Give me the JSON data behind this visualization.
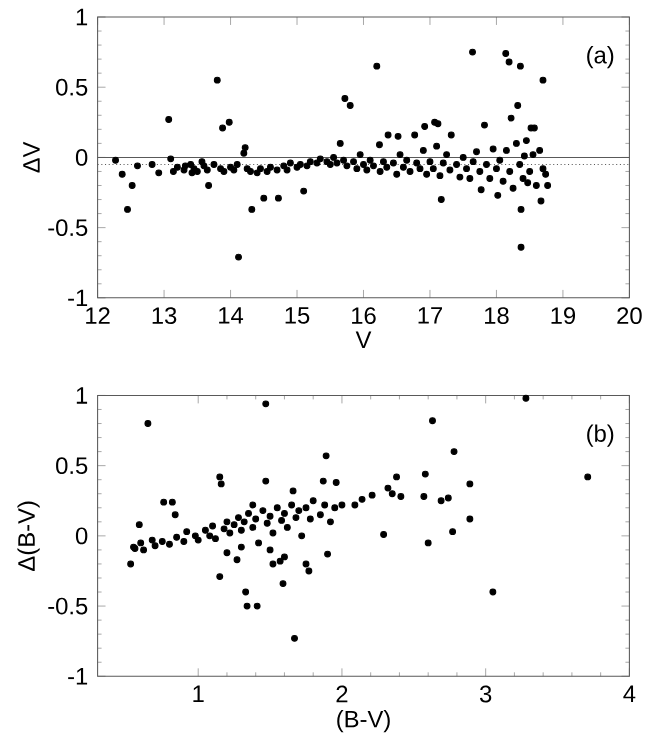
{
  "chart_data": [
    {
      "type": "scatter",
      "xlabel": "V",
      "ylabel": "ΔV",
      "annotations": [
        "(a)"
      ],
      "marker": "circle",
      "color": "#000000",
      "xlim": [
        12,
        20
      ],
      "ylim": [
        -1,
        1
      ],
      "xticks": [
        12,
        13,
        14,
        15,
        16,
        17,
        18,
        19,
        20
      ],
      "yticks": [
        -1,
        -0.5,
        0,
        0.5,
        1
      ],
      "ref_lines": [
        {
          "axis": "y",
          "value": 0,
          "line_style": "solid"
        },
        {
          "axis": "y",
          "value": -0.05,
          "line_style": "dotted"
        }
      ],
      "x": [
        12.27,
        12.37,
        12.45,
        12.52,
        12.6,
        12.82,
        12.92,
        13.07,
        13.1,
        13.14,
        13.32,
        13.42,
        13.57,
        13.67,
        13.8,
        13.88,
        13.98,
        14.12,
        14.2,
        14.22,
        14.32,
        14.5,
        14.72,
        15.1,
        15.65,
        15.72,
        15.8,
        16.2,
        16.24,
        16.37,
        16.52,
        16.77,
        16.92,
        17.07,
        17.12,
        17.17,
        17.32,
        17.64,
        17.77,
        17.82,
        18.02,
        18.14,
        18.19,
        18.36,
        18.32,
        18.22,
        18.37,
        18.37,
        18.47,
        18.52,
        18.57,
        18.67,
        18.7,
        18.74,
        18.77,
        18.42,
        13.2,
        13.3,
        13.4,
        13.45,
        13.5,
        13.6,
        13.65,
        13.75,
        13.85,
        13.9,
        14.0,
        14.05,
        14.1,
        14.25,
        14.3,
        14.4,
        14.45,
        14.55,
        14.6,
        14.7,
        14.8,
        14.85,
        14.9,
        15.0,
        15.05,
        15.15,
        15.2,
        15.3,
        15.35,
        15.45,
        15.5,
        15.55,
        15.6,
        15.7,
        15.75,
        15.85,
        15.9,
        15.95,
        16.0,
        16.05,
        16.1,
        16.15,
        16.25,
        16.3,
        16.35,
        16.45,
        16.5,
        16.55,
        16.6,
        16.65,
        16.7,
        16.8,
        16.85,
        16.9,
        16.95,
        17.0,
        17.05,
        17.1,
        17.15,
        17.2,
        17.25,
        17.3,
        17.4,
        17.45,
        17.5,
        17.55,
        17.6,
        17.65,
        17.7,
        17.75,
        17.85,
        17.9,
        17.95,
        18.0,
        18.05,
        18.1,
        18.15,
        18.2,
        18.25,
        18.3,
        18.35,
        18.4,
        18.45,
        18.5,
        18.55,
        18.6,
        18.65,
        18.7
      ],
      "values": [
        -0.02,
        -0.12,
        -0.37,
        -0.2,
        -0.06,
        -0.05,
        -0.11,
        0.27,
        -0.01,
        -0.1,
        -0.06,
        -0.11,
        -0.03,
        -0.2,
        0.55,
        0.21,
        0.25,
        -0.71,
        0.03,
        0.07,
        -0.37,
        -0.29,
        -0.29,
        -0.24,
        0.1,
        0.42,
        0.37,
        0.65,
        0.09,
        0.16,
        0.15,
        0.16,
        0.22,
        0.25,
        0.24,
        -0.3,
        0.16,
        0.75,
        -0.23,
        0.23,
        -0.27,
        0.74,
        0.68,
        0.65,
        0.37,
        0.28,
        -0.37,
        -0.64,
        -0.18,
        0.21,
        0.21,
        -0.31,
        0.55,
        -0.12,
        -0.2,
        0.01,
        -0.07,
        -0.09,
        -0.05,
        -0.08,
        -0.1,
        -0.06,
        -0.09,
        -0.05,
        -0.08,
        -0.1,
        -0.07,
        -0.09,
        -0.05,
        -0.08,
        -0.1,
        -0.11,
        -0.08,
        -0.1,
        -0.07,
        -0.09,
        -0.06,
        -0.09,
        -0.04,
        -0.07,
        -0.05,
        -0.06,
        -0.03,
        -0.04,
        -0.01,
        -0.03,
        -0.05,
        0.0,
        -0.04,
        -0.02,
        -0.06,
        -0.03,
        -0.08,
        0.02,
        -0.05,
        -0.09,
        -0.02,
        -0.06,
        -0.1,
        -0.03,
        -0.07,
        -0.04,
        -0.12,
        0.02,
        -0.07,
        -0.02,
        -0.1,
        -0.04,
        -0.08,
        0.05,
        -0.12,
        -0.03,
        -0.08,
        0.08,
        -0.13,
        -0.04,
        0.02,
        -0.09,
        -0.05,
        -0.14,
        0.0,
        -0.08,
        -0.15,
        -0.03,
        0.04,
        -0.1,
        -0.05,
        -0.15,
        0.06,
        -0.08,
        -0.02,
        -0.17,
        0.05,
        -0.1,
        -0.22,
        0.1,
        -0.05,
        -0.15,
        0.12,
        -0.1,
        0.02,
        -0.2,
        0.05,
        -0.08
      ]
    },
    {
      "type": "scatter",
      "xlabel": "(B-V)",
      "ylabel": "Δ(B-V)",
      "annotations": [
        "(b)"
      ],
      "marker": "circle",
      "color": "#000000",
      "xlim": [
        0.3,
        4
      ],
      "ylim": [
        -1,
        1
      ],
      "xticks": [
        1,
        2,
        3,
        4
      ],
      "yticks": [
        -1,
        -0.5,
        0,
        0.5,
        1
      ],
      "x": [
        0.65,
        1.47,
        3.28,
        2.63,
        2.78,
        3.71,
        1.89,
        3.05,
        1.67,
        1.33,
        1.34,
        1.41,
        1.15,
        1.59,
        1.77,
        1.75,
        1.9,
        2.29,
        2.6,
        2.77,
        2.89,
        2.89,
        2.74,
        2.69,
        2.57,
        2.58,
        2.38,
        2.41,
        2.35,
        2.32,
        2.21,
        2.14,
        2.09,
        1.96,
        1.87,
        2.0,
        0.59,
        0.53,
        0.56,
        0.76,
        0.82,
        0.84,
        1.15,
        1.16,
        1.47,
        1.38,
        1.66,
        1.57,
        1.52,
        1.27,
        0.55,
        0.6,
        0.62,
        0.68,
        0.7,
        0.75,
        0.8,
        0.85,
        0.9,
        0.92,
        0.98,
        1.0,
        1.05,
        1.08,
        1.1,
        1.12,
        1.18,
        1.2,
        1.22,
        1.25,
        1.28,
        1.3,
        1.32,
        1.35,
        1.38,
        1.4,
        1.42,
        1.45,
        1.48,
        1.5,
        1.52,
        1.55,
        1.58,
        1.6,
        1.62,
        1.65,
        1.68,
        1.7,
        1.72,
        1.75,
        1.78,
        1.8,
        1.85,
        1.88,
        1.92,
        1.95,
        1.3,
        1.2,
        1.5,
        1.6
      ],
      "values": [
        0.8,
        0.94,
        0.98,
        0.82,
        0.6,
        0.42,
        0.57,
        -0.4,
        -0.73,
        -0.4,
        -0.5,
        -0.5,
        -0.29,
        -0.34,
        -0.25,
        -0.2,
        -0.13,
        0.01,
        -0.05,
        0.03,
        0.12,
        0.37,
        0.27,
        0.25,
        0.28,
        0.44,
        0.42,
        0.28,
        0.3,
        0.34,
        0.29,
        0.26,
        0.22,
        0.38,
        0.39,
        0.22,
        0.08,
        -0.2,
        -0.09,
        0.24,
        0.24,
        0.15,
        0.42,
        0.37,
        0.39,
        0.22,
        0.32,
        -0.18,
        -0.2,
        -0.17,
        -0.08,
        -0.05,
        -0.1,
        -0.03,
        -0.07,
        -0.04,
        -0.06,
        -0.01,
        -0.04,
        0.03,
        0.0,
        -0.03,
        0.04,
        0.0,
        0.07,
        -0.02,
        0.05,
        0.1,
        0.02,
        0.08,
        0.13,
        0.04,
        0.1,
        0.16,
        0.06,
        0.12,
        -0.05,
        0.18,
        0.09,
        0.14,
        0.02,
        0.2,
        0.11,
        0.16,
        0.06,
        0.22,
        0.13,
        0.18,
        0.0,
        0.2,
        0.12,
        0.25,
        0.15,
        0.22,
        0.1,
        0.2,
        -0.08,
        -0.12,
        -0.1,
        -0.15
      ]
    }
  ]
}
